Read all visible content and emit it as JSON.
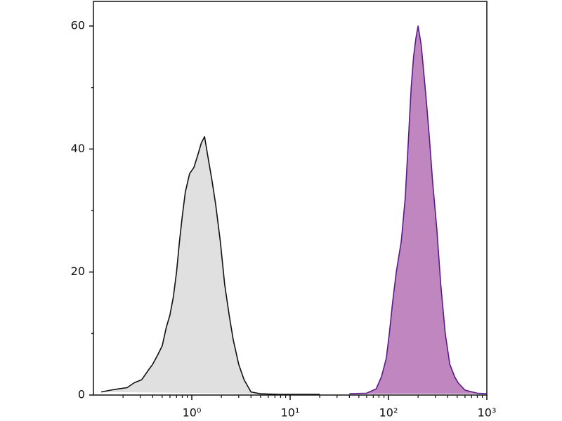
{
  "chart_data": {
    "type": "area",
    "xscale": "log",
    "xlim": [
      0.1,
      1000
    ],
    "ylim": [
      0,
      64
    ],
    "xticks": [
      {
        "value": 1,
        "label": "10⁰"
      },
      {
        "value": 10,
        "label": "10¹"
      },
      {
        "value": 100,
        "label": "10²"
      },
      {
        "value": 1000,
        "label": "10³"
      }
    ],
    "xminorticks": [
      0.2,
      0.3,
      0.4,
      0.5,
      0.6,
      0.7,
      0.8,
      0.9,
      2,
      3,
      4,
      5,
      6,
      7,
      8,
      9,
      20,
      30,
      40,
      50,
      60,
      70,
      80,
      90,
      200,
      300,
      400,
      500,
      600,
      700,
      800,
      900
    ],
    "yticks": [
      0,
      20,
      40,
      60
    ],
    "yminorticks": [
      10,
      30,
      50
    ],
    "series": [
      {
        "color": "#111111",
        "fill": "#e0e0e0",
        "x": [
          0.12,
          0.15,
          0.18,
          0.22,
          0.26,
          0.31,
          0.36,
          0.4,
          0.45,
          0.5,
          0.55,
          0.6,
          0.65,
          0.7,
          0.75,
          0.8,
          0.86,
          0.95,
          1.05,
          1.15,
          1.25,
          1.35,
          1.45,
          1.6,
          1.75,
          1.95,
          2.16,
          2.4,
          2.64,
          3.0,
          3.4,
          4.0,
          5,
          8,
          20
        ],
        "values": [
          0.5,
          0.8,
          1,
          1.2,
          2,
          2.5,
          4,
          5,
          6.5,
          8,
          11,
          13,
          16,
          20,
          25,
          29,
          33,
          36,
          37,
          39,
          41,
          42,
          39,
          35,
          31,
          25,
          18,
          13,
          9,
          5,
          2.5,
          0.5,
          0.2,
          0.1,
          0.1
        ]
      },
      {
        "color": "#5a1a8a",
        "fill": "#bf86bf",
        "x": [
          40,
          60,
          75,
          85,
          95,
          102,
          110,
          120,
          135,
          148,
          160,
          170,
          180,
          190,
          200,
          215,
          230,
          245,
          260,
          280,
          310,
          340,
          378,
          420,
          470,
          510,
          600,
          800,
          1000
        ],
        "values": [
          0.2,
          0.3,
          1,
          3,
          6,
          10,
          15,
          20,
          25,
          32,
          42,
          50,
          55,
          58,
          60,
          57,
          52,
          47,
          42,
          35,
          27,
          18,
          10,
          5,
          3,
          2,
          0.8,
          0.3,
          0.2
        ]
      }
    ]
  }
}
